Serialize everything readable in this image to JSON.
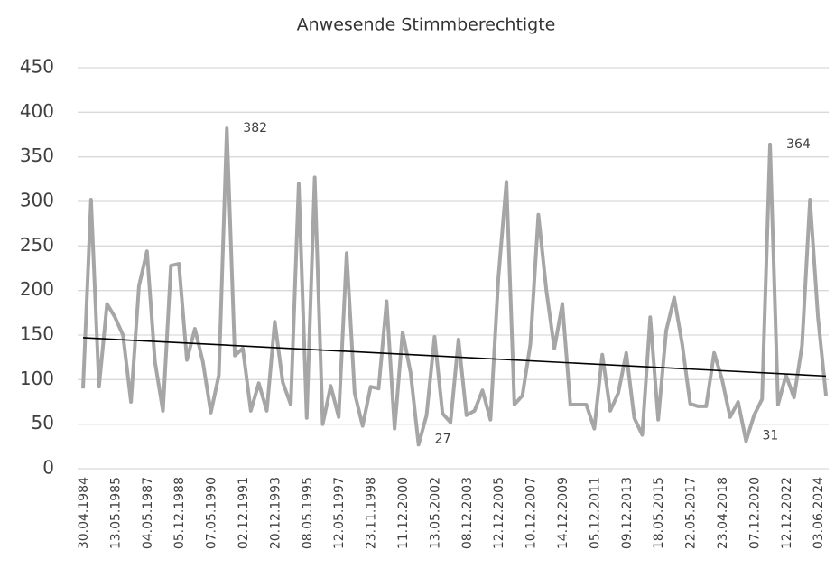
{
  "chart_data": {
    "type": "line",
    "title": "Anwesende Stimmberechtigte",
    "categories": [
      "30.04.1984",
      null,
      null,
      null,
      "13.05.1985",
      null,
      null,
      null,
      "04.05.1987",
      null,
      null,
      null,
      "05.12.1988",
      null,
      null,
      null,
      "07.05.1990",
      null,
      null,
      null,
      "02.12.1991",
      null,
      null,
      null,
      "20.12.1993",
      null,
      null,
      null,
      "08.05.1995",
      null,
      null,
      null,
      "12.05.1997",
      null,
      null,
      null,
      "23.11.1998",
      null,
      null,
      null,
      "11.12.2000",
      null,
      null,
      null,
      "13.05.2002",
      null,
      null,
      null,
      "08.12.2003",
      null,
      null,
      null,
      "12.12.2005",
      null,
      null,
      null,
      "10.12.2007",
      null,
      null,
      null,
      "14.12.2009",
      null,
      null,
      null,
      "05.12.2011",
      null,
      null,
      null,
      "09.12.2013",
      null,
      null,
      null,
      "18.05.2015",
      null,
      null,
      null,
      "22.05.2017",
      null,
      null,
      null,
      "23.04.2018",
      null,
      null,
      null,
      "07.12.2020",
      null,
      null,
      null,
      "12.12.2022",
      null,
      null,
      null,
      "03.06.2024",
      null
    ],
    "series": [
      {
        "color": "#a6a6a6",
        "values": [
          90,
          302,
          92,
          185,
          170,
          150,
          75,
          205,
          244,
          120,
          65,
          228,
          230,
          122,
          157,
          120,
          63,
          105,
          382,
          127,
          135,
          65,
          96,
          65,
          165,
          97,
          72,
          320,
          57,
          327,
          50,
          93,
          58,
          242,
          85,
          48,
          92,
          90,
          188,
          45,
          153,
          108,
          27,
          60,
          148,
          62,
          52,
          145,
          60,
          65,
          88,
          55,
          215,
          322,
          72,
          82,
          140,
          285,
          200,
          135,
          185,
          72,
          72,
          72,
          45,
          128,
          65,
          85,
          130,
          57,
          38,
          170,
          55,
          155,
          192,
          140,
          73,
          70,
          70,
          130,
          100,
          58,
          75,
          31,
          60,
          78,
          364,
          72,
          105,
          80,
          138,
          302,
          170,
          82
        ],
        "value_labels": [
          null,
          null,
          null,
          null,
          null,
          null,
          null,
          null,
          null,
          null,
          null,
          null,
          null,
          null,
          null,
          null,
          null,
          null,
          "382",
          null,
          null,
          null,
          null,
          null,
          null,
          null,
          null,
          null,
          null,
          null,
          null,
          null,
          null,
          null,
          null,
          null,
          null,
          null,
          null,
          null,
          null,
          null,
          "27",
          null,
          null,
          null,
          null,
          null,
          null,
          null,
          null,
          null,
          null,
          null,
          null,
          null,
          null,
          null,
          null,
          null,
          null,
          null,
          null,
          null,
          null,
          null,
          null,
          null,
          null,
          null,
          null,
          null,
          null,
          null,
          null,
          null,
          null,
          null,
          null,
          null,
          null,
          null,
          null,
          "31",
          null,
          null,
          "364",
          null,
          null,
          null,
          null,
          null,
          null,
          null
        ]
      }
    ],
    "trend": {
      "color": "#000000",
      "values": [
        147,
        104
      ]
    },
    "ylim": [
      0,
      450
    ],
    "yticks": [
      0,
      50,
      100,
      150,
      200,
      250,
      300,
      350,
      400,
      450
    ],
    "grid": true
  }
}
